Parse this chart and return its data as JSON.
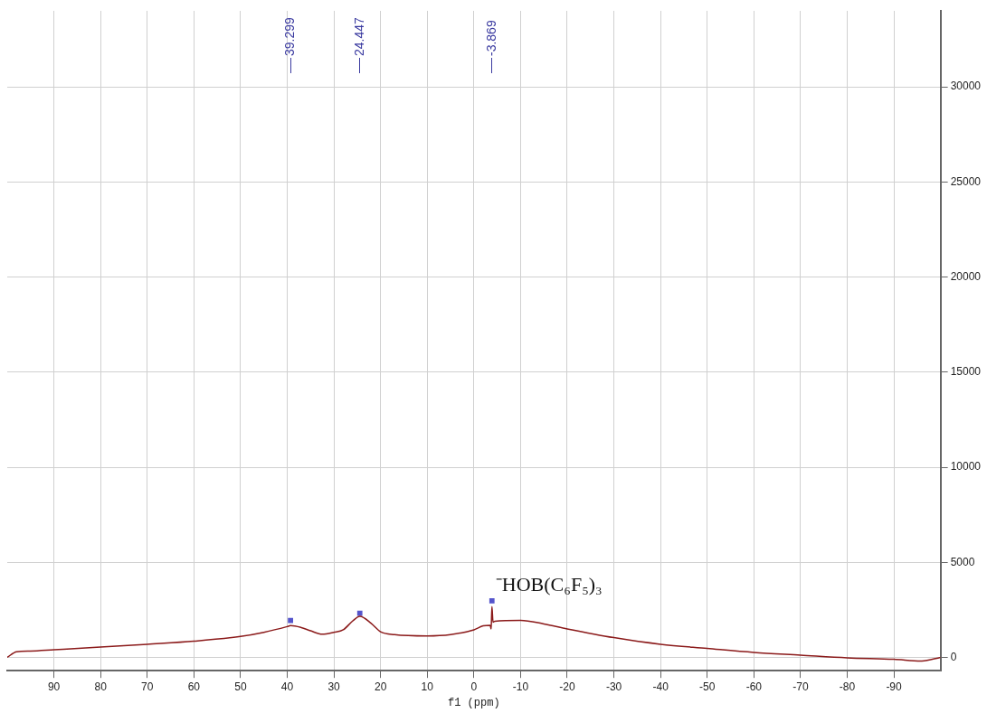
{
  "chart_data": {
    "type": "line",
    "xlabel": "f1 (ppm)",
    "x": [
      100,
      98,
      95,
      90,
      80,
      70,
      60,
      50,
      45,
      40,
      39.299,
      37,
      35,
      32.5,
      30,
      28,
      26,
      24.447,
      22,
      20,
      17,
      10,
      5,
      0,
      -2,
      -3.5,
      -3.7,
      -3.869,
      -4.1,
      -4.5,
      -10,
      -15,
      -20,
      -30,
      -40,
      -50,
      -60,
      -70,
      -80,
      -90,
      -96,
      -100
    ],
    "series": [
      {
        "color": "#8b1a1a",
        "values": [
          0,
          300,
          330,
          400,
          540,
          690,
          850,
          1100,
          1320,
          1620,
          1670,
          1570,
          1400,
          1220,
          1320,
          1450,
          1910,
          2160,
          1790,
          1350,
          1200,
          1130,
          1200,
          1450,
          1660,
          1690,
          1490,
          2670,
          1850,
          1900,
          1950,
          1760,
          1500,
          1040,
          690,
          470,
          260,
          120,
          -20,
          -100,
          -190,
          0
        ]
      },
      {
        "type": "scatter",
        "marker": "square",
        "color": "#5555cc",
        "x": [
          39.299,
          24.447,
          -3.869
        ],
        "values": [
          1940,
          2320,
          2980
        ]
      }
    ],
    "xlim": [
      100,
      -100
    ],
    "xticks": [
      90,
      80,
      70,
      60,
      50,
      40,
      30,
      20,
      10,
      0,
      -10,
      -20,
      -30,
      -40,
      -50,
      -60,
      -70,
      -80,
      -90
    ],
    "ylim": [
      -700,
      34000
    ],
    "yticks": [
      0,
      5000,
      10000,
      15000,
      20000,
      25000,
      30000
    ],
    "grid": true,
    "legend": false,
    "annotations": [
      "39.299",
      "24.447",
      "-3.869",
      {
        "text": "⁻HOB(C₆F₅)₃",
        "x": -3.869,
        "y": 2670
      }
    ]
  }
}
